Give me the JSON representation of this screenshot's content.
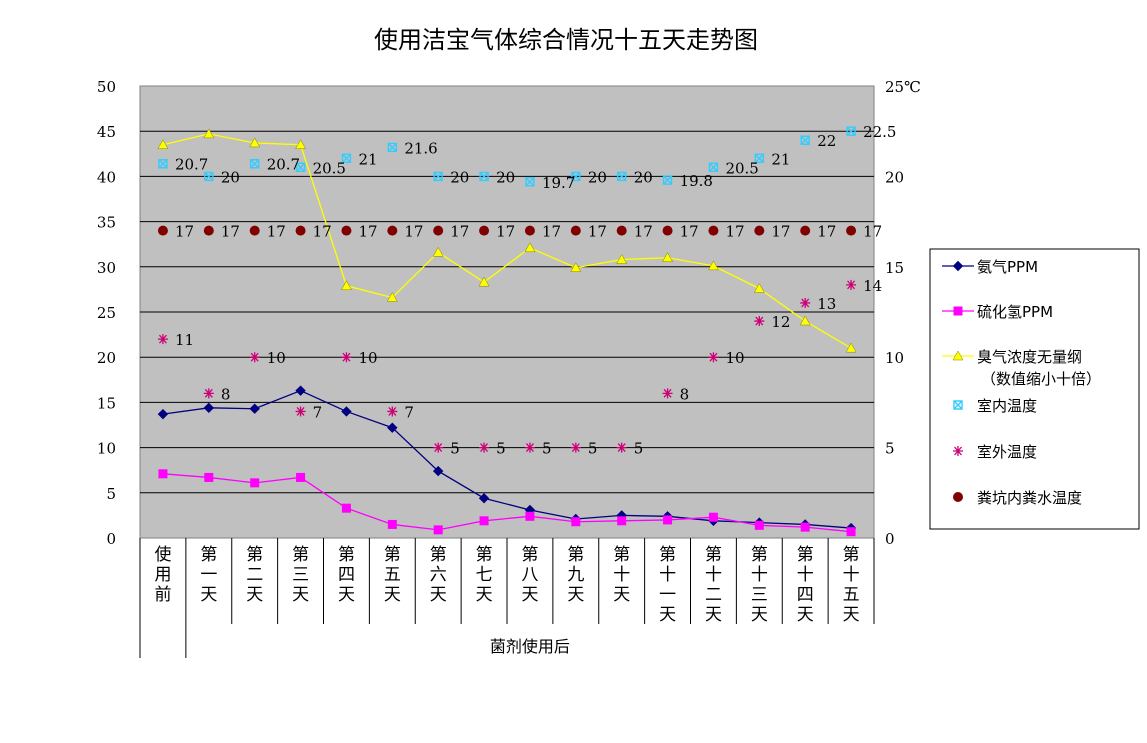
{
  "chart_data": {
    "type": "line",
    "title": "使用洁宝气体综合情况十五天走势图",
    "categories": [
      "使用前",
      "第一天",
      "第二天",
      "第三天",
      "第四天",
      "第五天",
      "第六天",
      "第七天",
      "第八天",
      "第九天",
      "第十天",
      "第十一天",
      "第十二天",
      "第十三天",
      "第十四天",
      "第十五天"
    ],
    "x_group_label": "菌剂使用后",
    "y_left": {
      "ylim": [
        0,
        50
      ],
      "ticks": [
        "0",
        "5",
        "10",
        "15",
        "20",
        "25",
        "30",
        "35",
        "40",
        "45",
        "50"
      ]
    },
    "y_right": {
      "ylim": [
        0,
        25
      ],
      "ticks": [
        "0",
        "5",
        "10",
        "15",
        "20",
        "25"
      ],
      "unit": "℃"
    },
    "grid": true,
    "plot_bg": "#c0c0c0",
    "legend_position": "right",
    "series": [
      {
        "name": "氨气PPM",
        "axis": "left",
        "color": "#000080",
        "marker": "diamond",
        "line": true,
        "values": [
          13.7,
          14.4,
          14.3,
          16.3,
          14.0,
          12.2,
          7.4,
          4.4,
          3.1,
          2.1,
          2.5,
          2.4,
          1.9,
          1.7,
          1.5,
          1.1
        ]
      },
      {
        "name": "硫化氢PPM",
        "axis": "left",
        "color": "#ff00ff",
        "marker": "square",
        "line": true,
        "values": [
          7.1,
          6.7,
          6.1,
          6.7,
          3.3,
          1.5,
          0.9,
          1.9,
          2.4,
          1.8,
          1.9,
          2.0,
          2.3,
          1.4,
          1.2,
          0.7
        ]
      },
      {
        "name": "臭气浓度无量纲",
        "name_line2": "（数值缩小十倍）",
        "axis": "left",
        "color": "#ffff00",
        "marker": "triangle",
        "line": true,
        "values": [
          43.5,
          44.7,
          43.7,
          43.5,
          27.9,
          26.6,
          31.6,
          28.3,
          32.1,
          29.9,
          30.8,
          31.0,
          30.1,
          27.6,
          24.0,
          21.0
        ]
      },
      {
        "name": "室内温度",
        "axis": "right",
        "color": "#33ccff",
        "marker": "x",
        "line": false,
        "values": [
          20.7,
          20,
          20.7,
          20.5,
          21,
          21.6,
          20,
          20,
          19.7,
          20,
          20,
          19.8,
          20.5,
          21,
          22,
          22.5
        ],
        "labels": [
          "20.7",
          "20",
          "20.7",
          "20.5",
          "21",
          "21.6",
          "20",
          "20",
          "19.7",
          "20",
          "20",
          "19.8",
          "20.5",
          "21",
          "22",
          "22.5"
        ]
      },
      {
        "name": "室外温度",
        "axis": "right",
        "color": "#cc0077",
        "marker": "star",
        "line": false,
        "values": [
          11,
          8,
          10,
          7,
          10,
          7,
          5,
          5,
          5,
          5,
          5,
          8,
          10,
          12,
          13,
          14
        ],
        "labels": [
          "11",
          "8",
          "10",
          "7",
          "10",
          "7",
          "5",
          "5",
          "5",
          "5",
          "5",
          "8",
          "10",
          "12",
          "13",
          "14"
        ]
      },
      {
        "name": "粪坑内粪水温度",
        "axis": "right",
        "color": "#800000",
        "marker": "circle",
        "line": false,
        "values": [
          17,
          17,
          17,
          17,
          17,
          17,
          17,
          17,
          17,
          17,
          17,
          17,
          17,
          17,
          17,
          17
        ],
        "labels": [
          "17",
          "17",
          "17",
          "17",
          "17",
          "17",
          "17",
          "17",
          "17",
          "17",
          "17",
          "17",
          "17",
          "17",
          "17",
          "17"
        ]
      }
    ]
  }
}
